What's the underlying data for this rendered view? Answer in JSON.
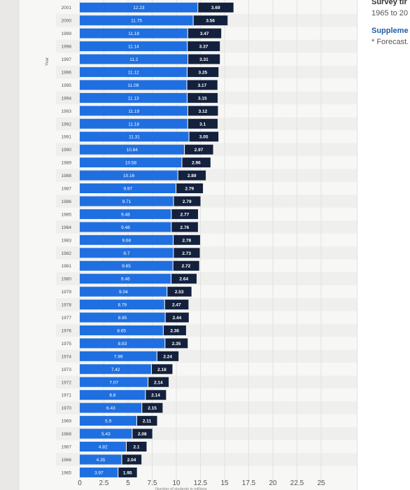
{
  "sidebar": {
    "title": "Survey tir",
    "range": "1965 to 20",
    "supplementary": "Suppleme",
    "note": "* Forecast."
  },
  "chart_data": {
    "type": "bar",
    "stacked": true,
    "orientation": "horizontal",
    "ylabel": "Year",
    "xlabel": "Number of students in millions",
    "xlim": [
      0,
      25
    ],
    "xticks": [
      "0",
      "2.5",
      "5",
      "7.5",
      "10",
      "12.5",
      "15",
      "17.5",
      "20",
      "22.5",
      "25"
    ],
    "grid": true,
    "colors": {
      "series1": "#1f6fe0",
      "series2": "#14213d"
    },
    "categories": [
      "2001",
      "2000",
      "1999",
      "1998",
      "1997",
      "1996",
      "1995",
      "1994",
      "1993",
      "1992",
      "1991",
      "1990",
      "1989",
      "1988",
      "1987",
      "1986",
      "1985",
      "1984",
      "1983",
      "1982",
      "1981",
      "1980",
      "1979",
      "1978",
      "1977",
      "1976",
      "1975",
      "1974",
      "1973",
      "1972",
      "1971",
      "1970",
      "1969",
      "1968",
      "1967",
      "1966",
      "1965"
    ],
    "series": [
      {
        "values": [
          12.23,
          11.75,
          11.18,
          11.14,
          11.2,
          11.12,
          11.09,
          11.13,
          11.19,
          11.18,
          11.31,
          10.84,
          10.58,
          10.16,
          9.97,
          9.71,
          9.48,
          9.48,
          9.68,
          9.7,
          9.65,
          9.46,
          9.04,
          8.79,
          8.85,
          8.65,
          8.83,
          7.99,
          7.42,
          7.07,
          6.8,
          6.43,
          5.9,
          5.43,
          4.82,
          4.35,
          3.97
        ]
      },
      {
        "values": [
          3.69,
          3.56,
          3.47,
          3.37,
          3.31,
          3.25,
          3.17,
          3.15,
          3.12,
          3.1,
          3.05,
          2.97,
          2.96,
          2.89,
          2.79,
          2.79,
          2.77,
          2.76,
          2.78,
          2.73,
          2.72,
          2.64,
          2.53,
          2.47,
          2.44,
          2.36,
          2.35,
          2.24,
          2.18,
          2.14,
          2.14,
          2.15,
          2.11,
          2.08,
          2.1,
          2.04,
          1.95
        ]
      }
    ]
  }
}
